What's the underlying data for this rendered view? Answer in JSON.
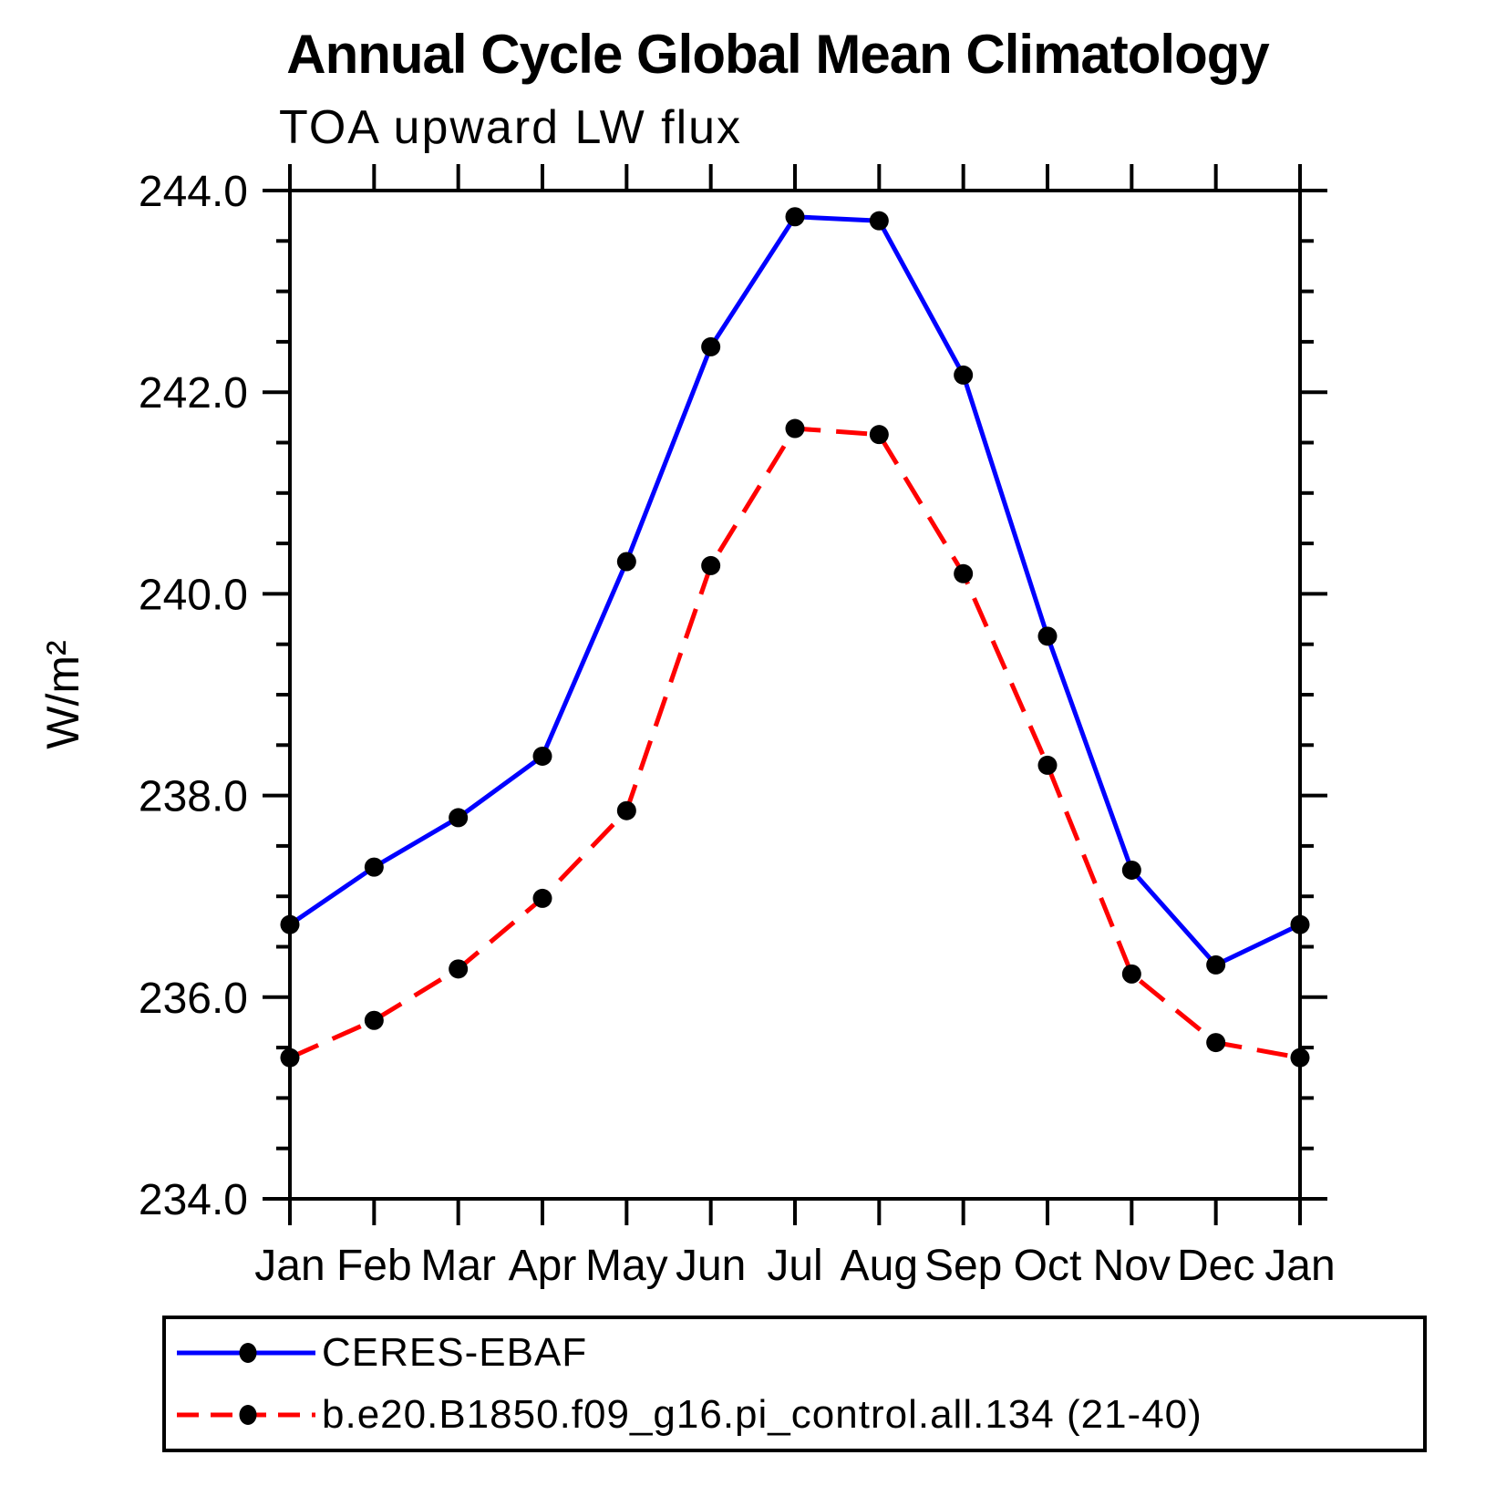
{
  "title": "Annual Cycle Global Mean Climatology",
  "subtitle": "TOA upward LW flux",
  "colors": {
    "axis": "#000000",
    "marker": "#000000",
    "series_obs": "#0000ff",
    "series_model": "#ff0000",
    "background": "#ffffff"
  },
  "chart_data": {
    "type": "line",
    "x_categories": [
      "Jan",
      "Feb",
      "Mar",
      "Apr",
      "May",
      "Jun",
      "Jul",
      "Aug",
      "Sep",
      "Oct",
      "Nov",
      "Dec",
      "Jan"
    ],
    "ylabel": "W/m²",
    "ylim": [
      234.0,
      244.0
    ],
    "ytick_interval": 2.0,
    "yminor_interval": 0.5,
    "ytick_labels": [
      "244.0",
      "242.0",
      "240.0",
      "238.0",
      "236.0",
      "234.0"
    ],
    "grid": "off",
    "legend_position": "bottom",
    "series": [
      {
        "name": "CERES-EBAF",
        "color": "#0000ff",
        "style": "solid",
        "marker": "circle",
        "marker_color": "#000000",
        "values": [
          236.72,
          237.29,
          237.78,
          238.39,
          240.32,
          242.45,
          243.74,
          243.7,
          242.17,
          239.58,
          237.26,
          236.32,
          236.72
        ]
      },
      {
        "name": "b.e20.B1850.f09_g16.pi_control.all.134 (21-40)",
        "color": "#ff0000",
        "style": "dashed",
        "marker": "circle",
        "marker_color": "#000000",
        "values": [
          235.4,
          235.77,
          236.28,
          236.98,
          237.85,
          240.28,
          241.64,
          241.58,
          240.2,
          238.3,
          236.23,
          235.55,
          235.4
        ]
      }
    ]
  }
}
